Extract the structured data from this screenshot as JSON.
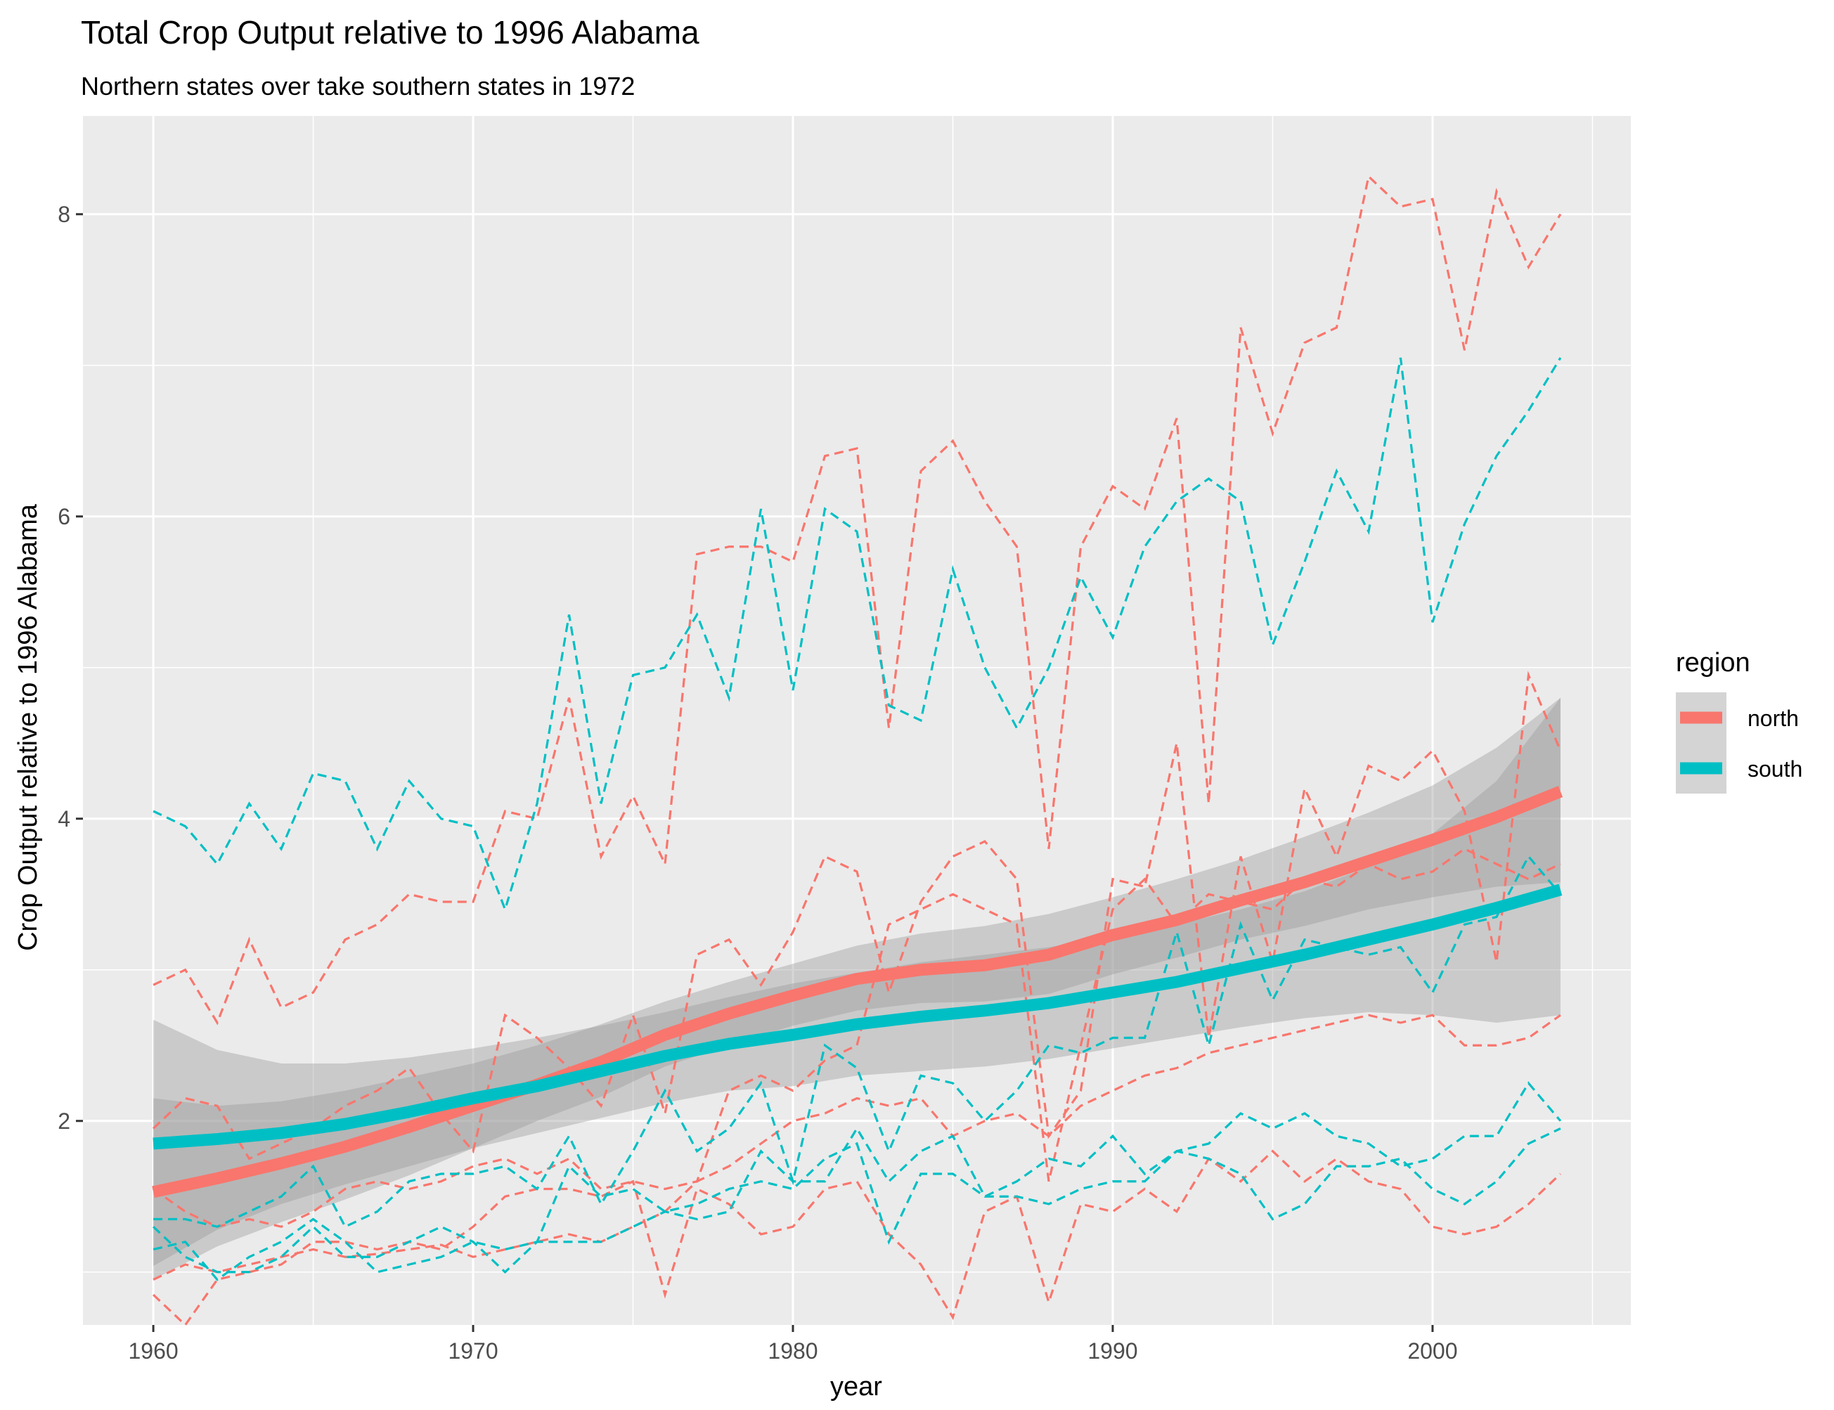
{
  "chart_data": {
    "type": "line",
    "title": "Total Crop Output relative to 1996 Alabama",
    "subtitle": "Northern states over take southern states in 1972",
    "xlabel": "year",
    "ylabel": "Crop Output relative to 1996 Alabama",
    "xlim": [
      1957.8,
      2006.2
    ],
    "ylim": [
      0.65,
      8.65
    ],
    "x_ticks": [
      1960,
      1970,
      1980,
      1990,
      2000
    ],
    "y_ticks": [
      2,
      4,
      6,
      8
    ],
    "grid": true,
    "legend": {
      "title": "region",
      "position": "right",
      "entries": [
        {
          "label": "north",
          "color": "#F8766D"
        },
        {
          "label": "south",
          "color": "#00BFC4"
        }
      ]
    },
    "x": [
      1960,
      1961,
      1962,
      1963,
      1964,
      1965,
      1966,
      1967,
      1968,
      1969,
      1970,
      1971,
      1972,
      1973,
      1974,
      1975,
      1976,
      1977,
      1978,
      1979,
      1980,
      1981,
      1982,
      1983,
      1984,
      1985,
      1986,
      1987,
      1988,
      1989,
      1990,
      1991,
      1992,
      1993,
      1994,
      1995,
      1996,
      1997,
      1998,
      1999,
      2000,
      2001,
      2002,
      2003,
      2004
    ],
    "series": [
      {
        "name": "north",
        "color": "#F8766D",
        "values": [
          0.95,
          1.05,
          1.0,
          1.05,
          1.1,
          1.15,
          1.1,
          1.12,
          1.15,
          1.18,
          1.1,
          1.15,
          1.2,
          1.25,
          1.2,
          1.3,
          1.4,
          1.6,
          1.7,
          1.85,
          2.0,
          2.05,
          2.15,
          2.1,
          2.15,
          1.9,
          2.0,
          2.05,
          1.9,
          2.1,
          2.2,
          2.3,
          2.35,
          2.45,
          2.5,
          2.55,
          2.6,
          2.65,
          2.7,
          2.65,
          2.7,
          2.5,
          2.5,
          2.55,
          2.7
        ]
      },
      {
        "name": "north",
        "color": "#F8766D",
        "values": [
          2.9,
          3.0,
          2.65,
          3.2,
          2.75,
          2.85,
          3.2,
          3.3,
          3.5,
          3.45,
          3.45,
          4.05,
          4.0,
          4.8,
          3.75,
          4.15,
          3.7,
          5.75,
          5.8,
          5.8,
          5.7,
          6.4,
          6.45,
          4.6,
          6.3,
          6.5,
          6.1,
          5.8,
          3.8,
          5.8,
          6.2,
          6.05,
          6.65,
          4.1,
          7.25,
          6.55,
          7.15,
          7.25,
          8.25,
          8.05,
          8.1,
          7.1,
          8.15,
          7.65,
          8.0
        ]
      },
      {
        "name": "north",
        "color": "#F8766D",
        "values": [
          1.95,
          2.15,
          2.1,
          1.75,
          1.85,
          1.95,
          2.1,
          2.2,
          2.35,
          2.05,
          1.8,
          2.7,
          2.55,
          2.35,
          2.1,
          2.7,
          2.05,
          3.1,
          3.2,
          2.9,
          3.25,
          3.75,
          3.65,
          2.85,
          3.45,
          3.75,
          3.85,
          3.6,
          1.9,
          2.2,
          3.6,
          3.55,
          4.5,
          2.55,
          3.75,
          3.05,
          4.2,
          3.75,
          4.35,
          4.25,
          4.45,
          4.05,
          3.05,
          4.95,
          4.45
        ]
      },
      {
        "name": "north",
        "color": "#F8766D",
        "values": [
          0.85,
          0.65,
          0.95,
          1.0,
          1.05,
          1.2,
          1.2,
          1.15,
          1.2,
          1.15,
          1.3,
          1.5,
          1.55,
          1.55,
          1.5,
          1.6,
          0.85,
          1.55,
          1.45,
          1.25,
          1.3,
          1.55,
          1.6,
          1.25,
          1.05,
          0.7,
          1.4,
          1.5,
          0.8,
          1.45,
          1.4,
          1.55,
          1.4,
          1.75,
          1.6,
          1.8,
          1.6,
          1.75,
          1.6,
          1.55,
          1.3,
          1.25,
          1.3,
          1.45,
          1.65
        ]
      },
      {
        "name": "north",
        "color": "#F8766D",
        "values": [
          1.55,
          1.4,
          1.3,
          1.35,
          1.3,
          1.4,
          1.55,
          1.6,
          1.55,
          1.6,
          1.7,
          1.75,
          1.65,
          1.75,
          1.55,
          1.6,
          1.55,
          1.6,
          2.2,
          2.3,
          2.2,
          2.4,
          2.5,
          3.3,
          3.4,
          3.5,
          3.4,
          3.3,
          1.6,
          2.5,
          3.4,
          3.6,
          3.3,
          3.5,
          3.45,
          3.4,
          3.6,
          3.55,
          3.7,
          3.6,
          3.65,
          3.8,
          3.7,
          3.6,
          3.7
        ]
      },
      {
        "name": "south",
        "color": "#00BFC4",
        "values": [
          4.05,
          3.95,
          3.7,
          4.1,
          3.8,
          4.3,
          4.25,
          3.8,
          4.25,
          4.0,
          3.95,
          3.4,
          4.1,
          5.35,
          4.1,
          4.95,
          5.0,
          5.35,
          4.8,
          6.05,
          4.85,
          6.05,
          5.9,
          4.75,
          4.65,
          5.65,
          5.0,
          4.6,
          5.0,
          5.6,
          5.2,
          5.8,
          6.1,
          6.25,
          6.1,
          5.15,
          5.7,
          6.3,
          5.9,
          7.05,
          5.3,
          5.95,
          6.4,
          6.7,
          7.05
        ]
      },
      {
        "name": "south",
        "color": "#00BFC4",
        "values": [
          1.35,
          1.35,
          1.3,
          1.4,
          1.5,
          1.7,
          1.3,
          1.4,
          1.6,
          1.65,
          1.65,
          1.7,
          1.55,
          1.9,
          1.45,
          1.8,
          2.2,
          1.8,
          1.95,
          2.25,
          1.6,
          2.5,
          2.35,
          1.8,
          2.3,
          2.25,
          2.0,
          2.2,
          2.5,
          2.45,
          2.55,
          2.55,
          3.25,
          2.5,
          3.3,
          2.8,
          3.2,
          3.15,
          3.1,
          3.15,
          2.85,
          3.3,
          3.35,
          3.75,
          3.5
        ]
      },
      {
        "name": "south",
        "color": "#00BFC4",
        "values": [
          1.15,
          1.2,
          0.95,
          1.1,
          1.2,
          1.35,
          1.2,
          1.0,
          1.05,
          1.1,
          1.2,
          1.15,
          1.2,
          1.7,
          1.5,
          1.55,
          1.4,
          1.45,
          1.55,
          1.6,
          1.55,
          1.75,
          1.85,
          1.2,
          1.65,
          1.65,
          1.5,
          1.5,
          1.45,
          1.55,
          1.6,
          1.6,
          1.8,
          1.75,
          1.65,
          1.35,
          1.45,
          1.7,
          1.7,
          1.75,
          1.55,
          1.45,
          1.6,
          1.85,
          1.95
        ]
      },
      {
        "name": "south",
        "color": "#00BFC4",
        "values": [
          1.3,
          1.1,
          1.0,
          1.0,
          1.1,
          1.3,
          1.1,
          1.1,
          1.2,
          1.3,
          1.2,
          1.0,
          1.2,
          1.2,
          1.2,
          1.3,
          1.4,
          1.35,
          1.4,
          1.8,
          1.6,
          1.6,
          1.95,
          1.6,
          1.8,
          1.9,
          1.5,
          1.6,
          1.75,
          1.7,
          1.9,
          1.65,
          1.8,
          1.85,
          2.05,
          1.95,
          2.05,
          1.9,
          1.85,
          1.7,
          1.75,
          1.9,
          1.9,
          2.25,
          2.0
        ]
      }
    ],
    "smooth": [
      {
        "name": "north",
        "color": "#F8766D",
        "x": [
          1960,
          1962,
          1964,
          1966,
          1968,
          1970,
          1972,
          1974,
          1976,
          1978,
          1980,
          1982,
          1984,
          1986,
          1988,
          1990,
          1992,
          1994,
          1996,
          1998,
          2000,
          2002,
          2004
        ],
        "y": [
          1.53,
          1.62,
          1.72,
          1.83,
          1.96,
          2.1,
          2.24,
          2.39,
          2.57,
          2.71,
          2.83,
          2.94,
          3.0,
          3.03,
          3.1,
          3.23,
          3.33,
          3.46,
          3.58,
          3.72,
          3.86,
          4.01,
          4.18
        ],
        "ci_upper": [
          2.15,
          2.1,
          2.13,
          2.2,
          2.29,
          2.38,
          2.5,
          2.64,
          2.79,
          2.92,
          3.04,
          3.16,
          3.24,
          3.29,
          3.37,
          3.48,
          3.6,
          3.73,
          3.88,
          4.04,
          4.22,
          4.47,
          4.8
        ],
        "ci_lower": [
          0.95,
          1.17,
          1.33,
          1.48,
          1.64,
          1.82,
          2.0,
          2.16,
          2.36,
          2.5,
          2.63,
          2.73,
          2.78,
          2.79,
          2.84,
          2.97,
          3.08,
          3.2,
          3.29,
          3.4,
          3.48,
          3.55,
          3.58
        ]
      },
      {
        "name": "south",
        "color": "#00BFC4",
        "x": [
          1960,
          1962,
          1964,
          1966,
          1968,
          1970,
          1972,
          1974,
          1976,
          1978,
          1980,
          1982,
          1984,
          1986,
          1988,
          1990,
          1992,
          1994,
          1996,
          1998,
          2000,
          2002,
          2004
        ],
        "y": [
          1.85,
          1.88,
          1.92,
          1.98,
          2.06,
          2.15,
          2.23,
          2.33,
          2.43,
          2.51,
          2.57,
          2.64,
          2.69,
          2.73,
          2.78,
          2.85,
          2.92,
          3.01,
          3.1,
          3.2,
          3.3,
          3.41,
          3.53
        ],
        "ci_upper": [
          2.67,
          2.47,
          2.38,
          2.38,
          2.42,
          2.48,
          2.55,
          2.63,
          2.72,
          2.82,
          2.91,
          2.98,
          3.05,
          3.1,
          3.15,
          3.22,
          3.3,
          3.4,
          3.52,
          3.68,
          3.9,
          4.25,
          4.8
        ],
        "ci_lower": [
          1.04,
          1.28,
          1.45,
          1.58,
          1.7,
          1.82,
          1.92,
          2.02,
          2.12,
          2.2,
          2.23,
          2.3,
          2.33,
          2.36,
          2.41,
          2.48,
          2.55,
          2.62,
          2.68,
          2.72,
          2.7,
          2.65,
          2.7
        ]
      }
    ]
  }
}
